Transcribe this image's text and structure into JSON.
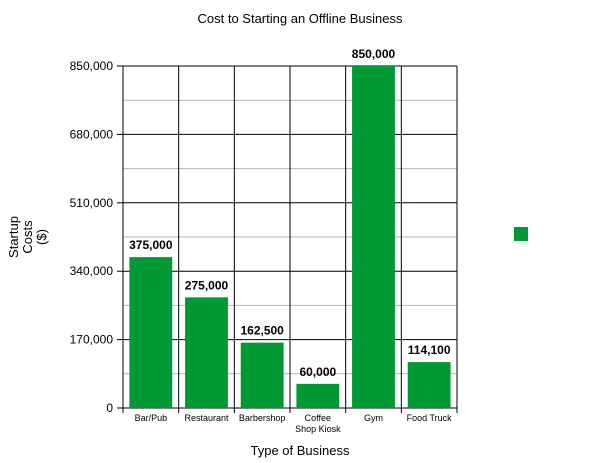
{
  "chart_data": {
    "type": "bar",
    "title": "Cost to Starting an Offline Business",
    "xlabel": "Type of Business",
    "ylabel_lines": [
      "Startup",
      "Costs",
      "($)"
    ],
    "categories": [
      [
        "Bar/Pub"
      ],
      [
        "Restaurant"
      ],
      [
        "Barbershop"
      ],
      [
        "Coffee",
        "Shop Kiosk"
      ],
      [
        "Gym"
      ],
      [
        "Food Truck"
      ]
    ],
    "values": [
      375000,
      275000,
      162500,
      60000,
      850000,
      114100
    ],
    "value_labels": [
      "375,000",
      "275,000",
      "162,500",
      "60,000",
      "850,000",
      "114,100"
    ],
    "yticks": [
      0,
      170000,
      340000,
      510000,
      680000,
      850000
    ],
    "ytick_labels": [
      "0",
      "170,000",
      "340,000",
      "510,000",
      "680,000",
      "850,000"
    ],
    "ylim": [
      0,
      850000
    ],
    "grid": true,
    "legend_position": "right",
    "bar_color": "#009933",
    "legend_color": "#009933"
  }
}
